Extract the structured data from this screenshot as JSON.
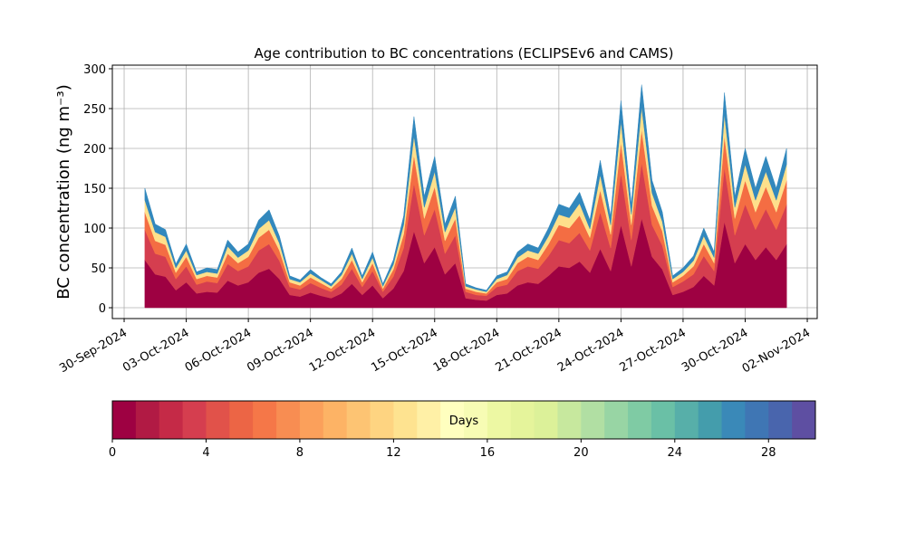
{
  "chart_data": {
    "type": "stacked_area",
    "title": "Age contribution to BC concentrations (ECLIPSEv6 and CAMS)",
    "y_label": "BC concentration (ng m⁻³)",
    "x": [
      1.0,
      1.5,
      2.0,
      2.5,
      3.0,
      3.5,
      4.0,
      4.5,
      5.0,
      5.5,
      6.0,
      6.5,
      7.0,
      7.5,
      8.0,
      8.5,
      9.0,
      9.5,
      10.0,
      10.5,
      11.0,
      11.5,
      12.0,
      12.5,
      13.0,
      13.5,
      14.0,
      14.5,
      15.0,
      15.5,
      16.0,
      16.5,
      17.0,
      17.5,
      18.0,
      18.5,
      19.0,
      19.5,
      20.0,
      20.5,
      21.0,
      21.5,
      22.0,
      22.5,
      23.0,
      23.5,
      24.0,
      24.5,
      25.0,
      25.5,
      26.0,
      26.5,
      27.0,
      27.5,
      28.0,
      28.5,
      29.0,
      29.5,
      30.0,
      30.5,
      31.0,
      31.5,
      32.0
    ],
    "series": [
      {
        "color": "#9e0142",
        "values": [
          60,
          42,
          39,
          22,
          32,
          18,
          20,
          19,
          34,
          28,
          32,
          44,
          49,
          36,
          16,
          14,
          19,
          15,
          12,
          18,
          30,
          16,
          28,
          12,
          24,
          46,
          96,
          56,
          76,
          42,
          56,
          12,
          10,
          9,
          16,
          18,
          28,
          32,
          30,
          40,
          52,
          50,
          58,
          44,
          74,
          46,
          104,
          52,
          112,
          64,
          48,
          16,
          20,
          26,
          40,
          28,
          108,
          56,
          80,
          60,
          76,
          60,
          80
        ]
      },
      {
        "color": "#d53e4f",
        "values": [
          38,
          26,
          25,
          14,
          20,
          11,
          13,
          12,
          21,
          18,
          20,
          28,
          31,
          23,
          10,
          9,
          12,
          10,
          8,
          11,
          19,
          10,
          18,
          8,
          15,
          29,
          60,
          35,
          48,
          26,
          35,
          8,
          6,
          6,
          10,
          11,
          18,
          20,
          19,
          25,
          33,
          31,
          36,
          28,
          46,
          29,
          65,
          33,
          70,
          40,
          30,
          10,
          13,
          16,
          25,
          18,
          68,
          35,
          50,
          38,
          48,
          38,
          50
        ]
      },
      {
        "color": "#f46d43",
        "values": [
          22,
          16,
          15,
          8,
          12,
          7,
          7,
          7,
          13,
          10,
          12,
          16,
          18,
          13,
          6,
          5,
          7,
          6,
          4,
          7,
          11,
          6,
          10,
          4,
          9,
          17,
          36,
          21,
          28,
          16,
          21,
          4,
          4,
          3,
          6,
          7,
          10,
          12,
          11,
          15,
          19,
          19,
          22,
          16,
          28,
          17,
          39,
          19,
          42,
          24,
          18,
          6,
          7,
          10,
          15,
          10,
          40,
          21,
          30,
          22,
          28,
          22,
          30
        ]
      },
      {
        "color": "#fee08b",
        "values": [
          15,
          11,
          10,
          6,
          8,
          5,
          5,
          5,
          9,
          7,
          8,
          11,
          12,
          9,
          4,
          4,
          5,
          4,
          3,
          5,
          8,
          4,
          7,
          3,
          6,
          12,
          24,
          14,
          19,
          11,
          14,
          3,
          3,
          2,
          4,
          5,
          7,
          8,
          8,
          10,
          13,
          13,
          15,
          11,
          19,
          12,
          26,
          13,
          28,
          16,
          12,
          4,
          5,
          7,
          10,
          7,
          27,
          14,
          20,
          15,
          19,
          15,
          20
        ]
      },
      {
        "color": "#3288bd",
        "values": [
          15,
          10,
          9,
          5,
          8,
          4,
          5,
          5,
          8,
          7,
          8,
          11,
          13,
          9,
          4,
          3,
          5,
          3,
          3,
          4,
          7,
          4,
          7,
          3,
          6,
          11,
          24,
          14,
          19,
          10,
          14,
          3,
          2,
          2,
          4,
          4,
          7,
          8,
          7,
          10,
          13,
          12,
          14,
          11,
          18,
          11,
          26,
          13,
          28,
          16,
          12,
          4,
          5,
          6,
          10,
          7,
          27,
          14,
          20,
          15,
          19,
          15,
          20
        ]
      }
    ],
    "xlim": [
      -0.57,
      33.48
    ],
    "xticks": [
      {
        "value": 0,
        "label": "30-Sep-2024"
      },
      {
        "value": 3,
        "label": "03-Oct-2024"
      },
      {
        "value": 6,
        "label": "06-Oct-2024"
      },
      {
        "value": 9,
        "label": "09-Oct-2024"
      },
      {
        "value": 12,
        "label": "12-Oct-2024"
      },
      {
        "value": 15,
        "label": "15-Oct-2024"
      },
      {
        "value": 18,
        "label": "18-Oct-2024"
      },
      {
        "value": 21,
        "label": "21-Oct-2024"
      },
      {
        "value": 24,
        "label": "24-Oct-2024"
      },
      {
        "value": 27,
        "label": "27-Oct-2024"
      },
      {
        "value": 30,
        "label": "30-Oct-2024"
      },
      {
        "value": 33,
        "label": "02-Nov-2024"
      }
    ],
    "ylim": [
      -13.6,
      304.5
    ],
    "yticks": [
      0,
      50,
      100,
      150,
      200,
      250,
      300
    ],
    "grid": true,
    "colorbar": {
      "label": "Days",
      "lim": [
        0,
        30
      ],
      "ticks": [
        0,
        4,
        8,
        12,
        16,
        20,
        24,
        28
      ],
      "colors": [
        "#9e0142",
        "#b11a44",
        "#c52a47",
        "#d53e4f",
        "#e1524a",
        "#ec6545",
        "#f57748",
        "#f88d52",
        "#fba05b",
        "#fdb365",
        "#fdc473",
        "#fed481",
        "#fee390",
        "#fff0a6",
        "#ffffbf",
        "#f7fcb4",
        "#edf8a3",
        "#e5f49b",
        "#dcf199",
        "#c7e89e",
        "#b1dfa3",
        "#98d5a4",
        "#7fcba4",
        "#6ac0a6",
        "#57afa9",
        "#449dac",
        "#3a89b8",
        "#3f76b4",
        "#4965ad",
        "#5e4fa2"
      ]
    }
  }
}
